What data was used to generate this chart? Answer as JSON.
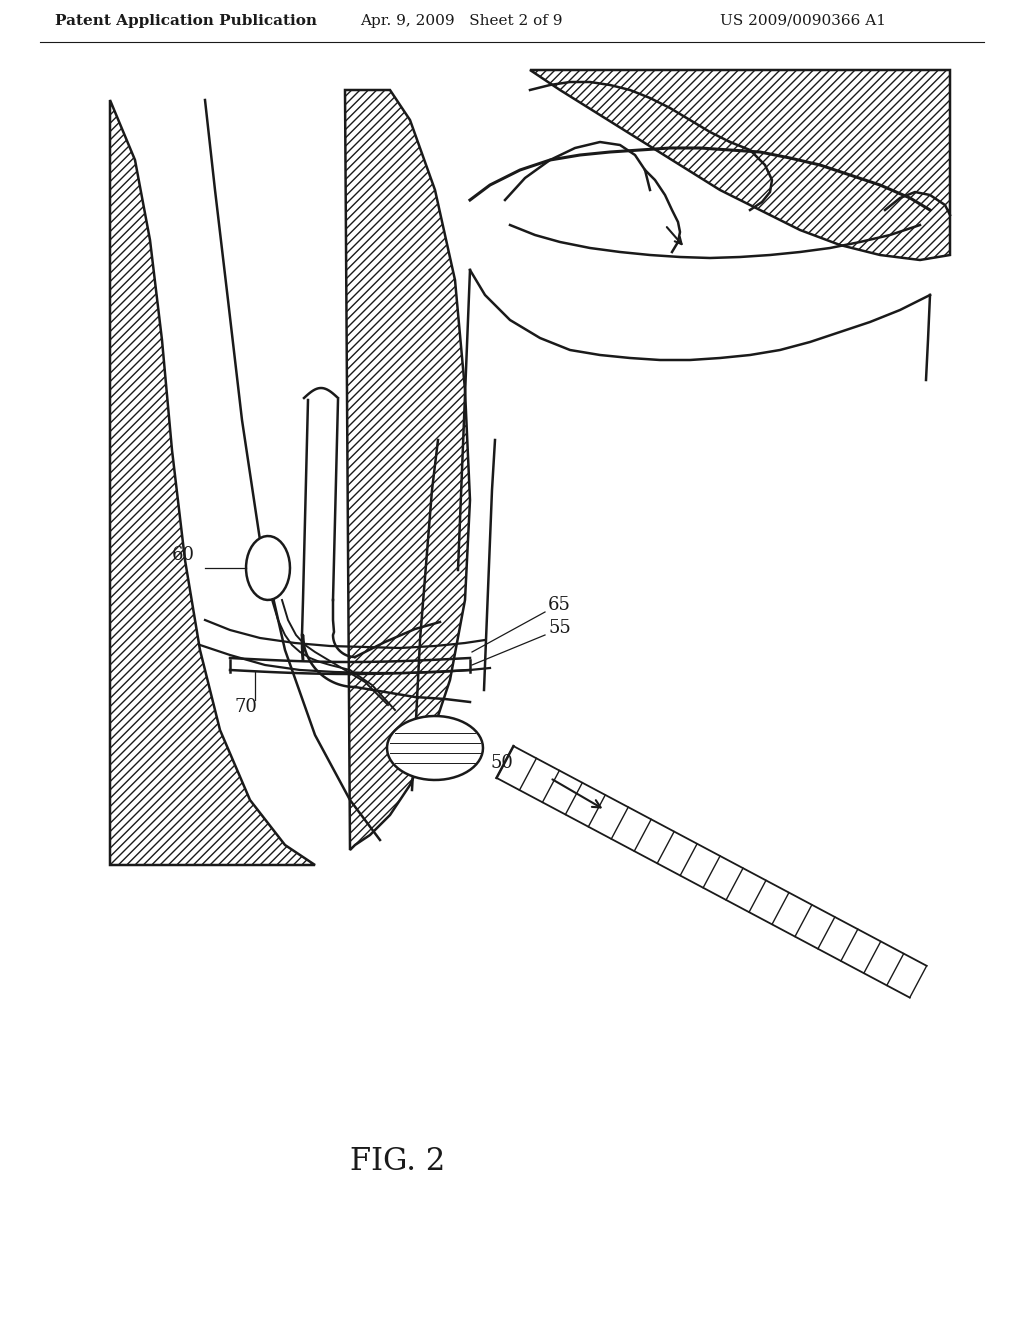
{
  "patent_left": "Patent Application Publication",
  "patent_date": "Apr. 9, 2009   Sheet 2 of 9",
  "patent_number": "US 2009/0090366 A1",
  "background_color": "#ffffff",
  "line_color": "#1a1a1a",
  "label_50": "50",
  "label_55": "55",
  "label_60": "60",
  "label_65": "65",
  "label_70": "70",
  "fig_label": "FIG. 2",
  "header_fontsize": 11,
  "label_fontsize": 13,
  "fig_label_fontsize": 22
}
